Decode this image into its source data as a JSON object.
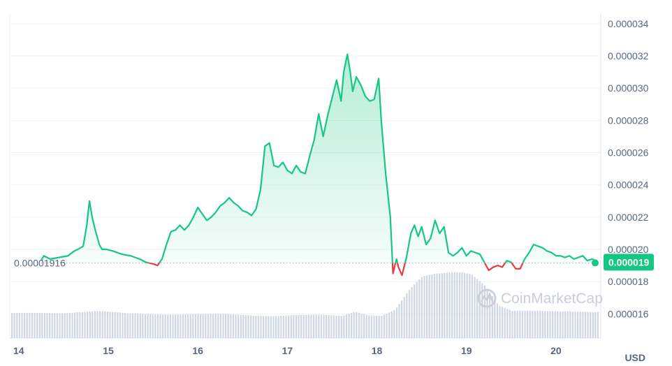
{
  "chart_data": {
    "type": "line",
    "unit": "USD",
    "xlim": [
      13.9,
      20.5
    ],
    "ylim": [
      1.45e-05,
      3.46e-05
    ],
    "x_ticks": [
      {
        "value": 14,
        "label": "14"
      },
      {
        "value": 15,
        "label": "15"
      },
      {
        "value": 16,
        "label": "16"
      },
      {
        "value": 17,
        "label": "17"
      },
      {
        "value": 18,
        "label": "18"
      },
      {
        "value": 19,
        "label": "19"
      },
      {
        "value": 20,
        "label": "20"
      }
    ],
    "y_ticks": [
      {
        "value": 3.4e-05,
        "label": "0.000034"
      },
      {
        "value": 3.2e-05,
        "label": "0.000032"
      },
      {
        "value": 3e-05,
        "label": "0.000030"
      },
      {
        "value": 2.8e-05,
        "label": "0.000028"
      },
      {
        "value": 2.6e-05,
        "label": "0.000026"
      },
      {
        "value": 2.4e-05,
        "label": "0.000024"
      },
      {
        "value": 2.2e-05,
        "label": "0.000022"
      },
      {
        "value": 2e-05,
        "label": "0.000020"
      },
      {
        "value": 1.8e-05,
        "label": "0.000018"
      },
      {
        "value": 1.6e-05,
        "label": "0.000016"
      }
    ],
    "reference": {
      "value": 1.916e-05,
      "label": "0.00001916"
    },
    "current": {
      "value": 1.925e-05,
      "label": "0.000019"
    },
    "price": {
      "x": [
        14.25,
        14.28,
        14.35,
        14.45,
        14.55,
        14.62,
        14.66,
        14.72,
        14.76,
        14.79,
        14.82,
        14.85,
        14.9,
        14.93,
        14.98,
        15.05,
        15.15,
        15.25,
        15.35,
        15.42,
        15.5,
        15.55,
        15.6,
        15.65,
        15.7,
        15.75,
        15.8,
        15.85,
        15.9,
        15.95,
        16.0,
        16.05,
        16.1,
        16.15,
        16.2,
        16.25,
        16.3,
        16.35,
        16.4,
        16.45,
        16.5,
        16.55,
        16.6,
        16.65,
        16.7,
        16.75,
        16.8,
        16.85,
        16.9,
        16.95,
        17.0,
        17.05,
        17.1,
        17.15,
        17.2,
        17.25,
        17.3,
        17.35,
        17.4,
        17.45,
        17.5,
        17.55,
        17.6,
        17.63,
        17.67,
        17.7,
        17.73,
        17.77,
        17.82,
        17.87,
        17.92,
        17.97,
        18.02,
        18.05,
        18.1,
        18.15,
        18.18,
        18.2,
        18.22,
        18.24,
        18.28,
        18.33,
        18.38,
        18.42,
        18.46,
        18.5,
        18.55,
        18.6,
        18.65,
        18.7,
        18.75,
        18.8,
        18.85,
        18.9,
        18.95,
        19.0,
        19.05,
        19.1,
        19.15,
        19.2,
        19.25,
        19.3,
        19.35,
        19.4,
        19.45,
        19.5,
        19.55,
        19.6,
        19.65,
        19.7,
        19.75,
        19.8,
        19.85,
        19.9,
        19.95,
        20.0,
        20.05,
        20.1,
        20.15,
        20.2,
        20.25,
        20.3,
        20.35,
        20.4,
        20.45
      ],
      "y": [
        1.93e-05,
        1.96e-05,
        1.94e-05,
        1.95e-05,
        1.96e-05,
        1.99e-05,
        2e-05,
        2.02e-05,
        2.15e-05,
        2.3e-05,
        2.2e-05,
        2.13e-05,
        2.03e-05,
        2e-05,
        2e-05,
        1.99e-05,
        1.97e-05,
        1.96e-05,
        1.94e-05,
        1.92e-05,
        1.91e-05,
        1.9e-05,
        1.94e-05,
        2.03e-05,
        2.11e-05,
        2.12e-05,
        2.15e-05,
        2.12e-05,
        2.15e-05,
        2.2e-05,
        2.26e-05,
        2.22e-05,
        2.18e-05,
        2.2e-05,
        2.23e-05,
        2.27e-05,
        2.29e-05,
        2.32e-05,
        2.29e-05,
        2.27e-05,
        2.24e-05,
        2.23e-05,
        2.21e-05,
        2.25e-05,
        2.37e-05,
        2.64e-05,
        2.66e-05,
        2.52e-05,
        2.51e-05,
        2.54e-05,
        2.49e-05,
        2.47e-05,
        2.52e-05,
        2.48e-05,
        2.47e-05,
        2.58e-05,
        2.68e-05,
        2.84e-05,
        2.7e-05,
        2.83e-05,
        2.94e-05,
        3.05e-05,
        2.92e-05,
        3.1e-05,
        3.21e-05,
        3.11e-05,
        2.98e-05,
        3.07e-05,
        3.02e-05,
        2.95e-05,
        2.92e-05,
        2.93e-05,
        3.06e-05,
        2.79e-05,
        2.46e-05,
        2.2e-05,
        1.85e-05,
        1.9e-05,
        1.94e-05,
        1.89e-05,
        1.84e-05,
        1.95e-05,
        2.1e-05,
        2.15e-05,
        2.08e-05,
        2.14e-05,
        2.03e-05,
        2.07e-05,
        2.18e-05,
        2.1e-05,
        2.14e-05,
        1.98e-05,
        1.96e-05,
        1.98e-05,
        2.01e-05,
        1.96e-05,
        1.99e-05,
        1.98e-05,
        1.97e-05,
        1.92e-05,
        1.87e-05,
        1.89e-05,
        1.9e-05,
        1.89e-05,
        1.93e-05,
        1.92e-05,
        1.88e-05,
        1.88e-05,
        1.94e-05,
        1.98e-05,
        2.03e-05,
        2.02e-05,
        2.01e-05,
        1.99e-05,
        1.98e-05,
        1.96e-05,
        1.96e-05,
        1.95e-05,
        1.96e-05,
        1.94e-05,
        1.95e-05,
        1.96e-05,
        1.93e-05,
        1.94e-05,
        1.93e-05
      ]
    },
    "volume": {
      "x": [
        13.9,
        14.5,
        14.85,
        15.2,
        15.8,
        16.3,
        16.8,
        17.4,
        17.6,
        17.75,
        17.9,
        18.05,
        18.2,
        18.35,
        18.5,
        18.65,
        18.8,
        18.95,
        19.05,
        19.2,
        19.35,
        19.5,
        19.8,
        20.1,
        20.45
      ],
      "values": [
        0.32,
        0.33,
        0.35,
        0.32,
        0.31,
        0.31,
        0.29,
        0.3,
        0.29,
        0.35,
        0.3,
        0.29,
        0.37,
        0.62,
        0.8,
        0.84,
        0.86,
        0.86,
        0.83,
        0.68,
        0.42,
        0.35,
        0.36,
        0.35,
        0.33
      ]
    },
    "colors": {
      "up": "#16c784",
      "down": "#ea3943",
      "volume": "#cfd6e4",
      "grid": "#eff2f5",
      "axis_text": "#58667e",
      "watermark": "#c8cdd6"
    },
    "watermark": "CoinMarketCap"
  }
}
